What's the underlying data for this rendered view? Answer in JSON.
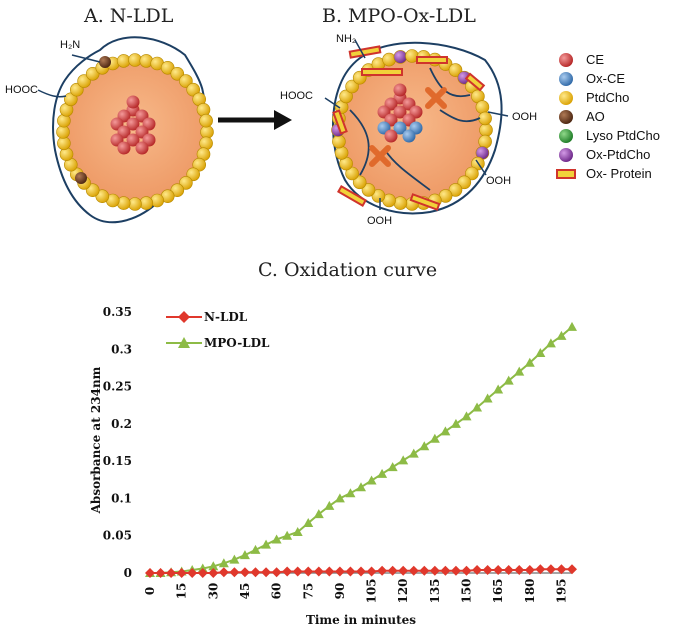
{
  "panels": {
    "a_title": "A. N-LDL",
    "b_title": "B. MPO-Ox-LDL",
    "c_title": "C. Oxidation curve"
  },
  "labels": {
    "a_nh2": "H₂N",
    "a_hooc": "HOOC",
    "b_nh2": "NH₂",
    "b_hooc": "HOOC",
    "b_ooh_right": "OOH",
    "b_ooh_lower_right": "OOH",
    "b_ooh_bottom": "OOH"
  },
  "key": [
    {
      "label": "CE",
      "shape": "ball",
      "color": "#d23b3b"
    },
    {
      "label": "Ox-CE",
      "shape": "ball",
      "color": "#4b88c8"
    },
    {
      "label": "PtdCho",
      "shape": "ball",
      "color": "#f3c21a"
    },
    {
      "label": "AO",
      "shape": "ball",
      "color": "#6b3a1e"
    },
    {
      "label": "Lyso PtdCho",
      "shape": "ball",
      "color": "#2f9a3a"
    },
    {
      "label": "Ox-PtdCho",
      "shape": "ball",
      "color": "#8e3fa8"
    },
    {
      "label": "Ox- Protein",
      "shape": "bar",
      "color": "#f1d23a"
    }
  ],
  "colors": {
    "core": "#f2a070",
    "core_edge": "#f7c89c",
    "apo_line": "#1d3f63",
    "arrow": "#111111",
    "cross": "#e06a2c",
    "nldl_series": "#e0382c",
    "mpo_series": "#8dbb46",
    "axis": "#888888"
  },
  "chart_data": {
    "type": "line",
    "title": "C. Oxidation curve",
    "xlabel": "Time in minutes",
    "ylabel": "Absorbance at 234nm",
    "xlim": [
      0,
      200
    ],
    "ylim": [
      0,
      0.35
    ],
    "xticks": [
      "0",
      "15",
      "30",
      "45",
      "60",
      "75",
      "90",
      "105",
      "120",
      "135",
      "150",
      "165",
      "180",
      "195"
    ],
    "yticks": [
      "0",
      "0.05",
      "0.1",
      "0.15",
      "0.2",
      "0.25",
      "0.3",
      "0.35"
    ],
    "legend": "top-left",
    "grid": false,
    "x": [
      0,
      5,
      10,
      15,
      20,
      25,
      30,
      35,
      40,
      45,
      50,
      55,
      60,
      65,
      70,
      75,
      80,
      85,
      90,
      95,
      100,
      105,
      110,
      115,
      120,
      125,
      130,
      135,
      140,
      145,
      150,
      155,
      160,
      165,
      170,
      175,
      180,
      185,
      190,
      195,
      200
    ],
    "series": [
      {
        "name": "N-LDL",
        "marker": "diamond",
        "values": [
          0,
          0,
          0,
          0,
          0,
          0,
          0,
          0.001,
          0.001,
          0.001,
          0.001,
          0.001,
          0.001,
          0.002,
          0.002,
          0.002,
          0.002,
          0.002,
          0.002,
          0.002,
          0.002,
          0.002,
          0.003,
          0.003,
          0.003,
          0.003,
          0.003,
          0.003,
          0.003,
          0.003,
          0.003,
          0.004,
          0.004,
          0.004,
          0.004,
          0.004,
          0.004,
          0.005,
          0.005,
          0.005,
          0.005
        ]
      },
      {
        "name": "MPO-LDL",
        "marker": "triangle",
        "values": [
          0,
          0,
          0.001,
          0.002,
          0.004,
          0.006,
          0.009,
          0.013,
          0.018,
          0.024,
          0.031,
          0.038,
          0.045,
          0.05,
          0.055,
          0.067,
          0.079,
          0.09,
          0.1,
          0.107,
          0.115,
          0.124,
          0.133,
          0.142,
          0.151,
          0.16,
          0.17,
          0.18,
          0.19,
          0.2,
          0.21,
          0.222,
          0.234,
          0.246,
          0.258,
          0.27,
          0.282,
          0.295,
          0.308,
          0.318,
          0.33
        ]
      }
    ]
  }
}
